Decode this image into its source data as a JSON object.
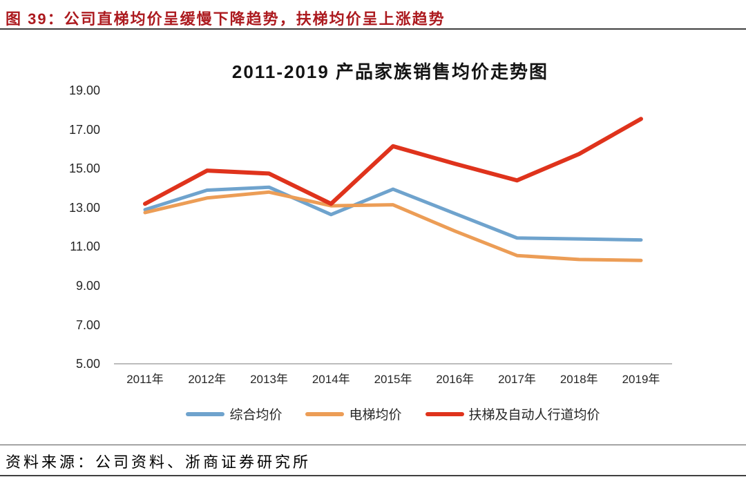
{
  "page": {
    "figure_label": "图 39：公司直梯均价呈缓慢下降趋势，扶梯均价呈上涨趋势",
    "source_label": "资料来源：公司资料、浙商证券研究所"
  },
  "colors": {
    "caption_red": "#ac1a1f",
    "axis_line": "#a6a6a6",
    "series_blue": "#6fa3cd",
    "series_orange": "#ec9d56",
    "series_red": "#df331c"
  },
  "chart_data": {
    "type": "line",
    "title": "2011-2019 产品家族销售均价走势图",
    "categories": [
      "2011年",
      "2012年",
      "2013年",
      "2014年",
      "2015年",
      "2016年",
      "2017年",
      "2018年",
      "2019年"
    ],
    "series": [
      {
        "name": "综合均价",
        "color": "#6fa3cd",
        "values": [
          12.9,
          13.9,
          14.05,
          12.65,
          13.95,
          12.7,
          11.45,
          11.4,
          11.35
        ]
      },
      {
        "name": "电梯均价",
        "color": "#ec9d56",
        "values": [
          12.75,
          13.5,
          13.8,
          13.1,
          13.15,
          11.8,
          10.55,
          10.35,
          10.3
        ]
      },
      {
        "name": "扶梯及自动人行道均价",
        "color": "#df331c",
        "values": [
          13.2,
          14.9,
          14.75,
          13.2,
          16.15,
          15.25,
          14.4,
          15.75,
          17.55
        ]
      }
    ],
    "ylim": [
      5,
      19
    ],
    "ytick_step": 2,
    "ytick_labels": [
      "19.00",
      "17.00",
      "15.00",
      "13.00",
      "11.00",
      "9.00",
      "7.00",
      "5.00"
    ],
    "grid": false,
    "legend_position": "bottom"
  }
}
